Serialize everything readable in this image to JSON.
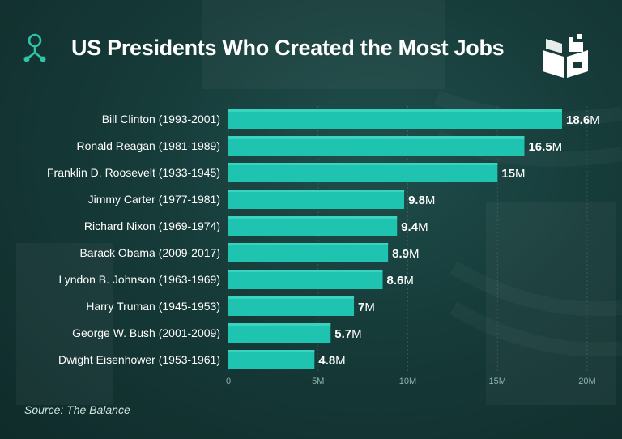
{
  "header": {
    "title": "US Presidents Who Created the Most Jobs",
    "icon": "person-network-icon",
    "logo": "book-castle-logo-icon"
  },
  "source": "Source: The Balance",
  "colors": {
    "bar": "#1fc4b0",
    "bar_light": "#3fd8c4",
    "accent": "#2ec4a8",
    "label": "#ffffff",
    "tick": "#8fb3ae"
  },
  "chart_data": {
    "type": "bar",
    "orientation": "horizontal",
    "title": "US Presidents Who Created the Most Jobs",
    "unit": "M",
    "categories": [
      "Bill Clinton (1993-2001)",
      "Ronald Reagan (1981-1989)",
      "Franklin D. Roosevelt (1933-1945)",
      "Jimmy Carter (1977-1981)",
      "Richard Nixon (1969-1974)",
      "Barack Obama (2009-2017)",
      "Lyndon B. Johnson (1963-1969)",
      "Harry Truman (1945-1953)",
      "George W. Bush (2001-2009)",
      "Dwight Eisenhower (1953-1961)"
    ],
    "values": [
      18.6,
      16.5,
      15,
      9.8,
      9.4,
      8.9,
      8.6,
      7,
      5.7,
      4.8
    ],
    "value_labels": [
      "18.6",
      "16.5",
      "15",
      "9.8",
      "9.4",
      "8.9",
      "8.6",
      "7",
      "5.7",
      "4.8"
    ],
    "xlim": [
      0,
      20
    ],
    "xticks": [
      0,
      5,
      10,
      15,
      20
    ],
    "xtick_labels": [
      "0",
      "5M",
      "10M",
      "15M",
      "20M"
    ],
    "grid": true
  }
}
